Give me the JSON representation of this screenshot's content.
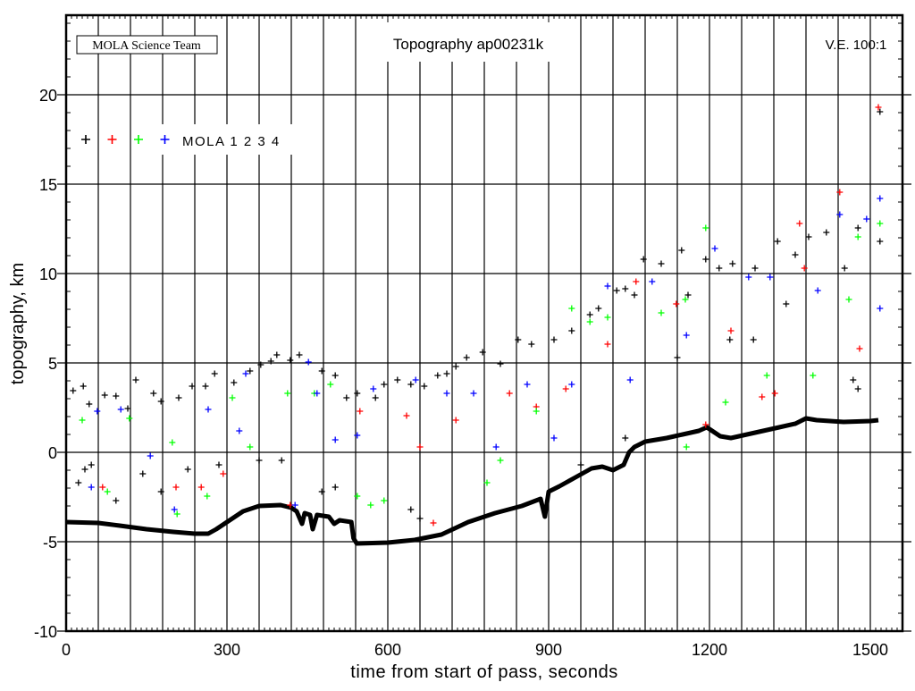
{
  "chart_data": {
    "type": "scatter",
    "title": "Topography ap00231k",
    "credit": "MOLA Science Team",
    "vertical_exaggeration": "V.E. 100:1",
    "xlabel": "time from start of pass, seconds",
    "ylabel": "topography, km",
    "xlim": [
      0,
      1560
    ],
    "ylim": [
      -10,
      24.45
    ],
    "xticks": [
      0,
      300,
      600,
      900,
      1200,
      1500
    ],
    "xtick_labels": [
      "0",
      "300",
      "600",
      "900",
      "1200",
      "1500"
    ],
    "yticks": [
      -10,
      -5,
      0,
      5,
      10,
      15,
      20
    ],
    "ytick_labels": [
      "-10",
      "-5",
      "0",
      "5",
      "10",
      "15",
      "20"
    ],
    "x_grid_step": 60,
    "y_grid_step": 5,
    "x_minor_step": 10,
    "y_minor_step": 1,
    "grid": true,
    "legend": {
      "placement": "top-left",
      "label": "MOLA 1 2 3 4",
      "colors": [
        "#000000",
        "#ff0000",
        "#00ff00",
        "#0000ff"
      ]
    },
    "ground_profile": {
      "color": "#000000",
      "points": [
        [
          0,
          -3.9
        ],
        [
          60,
          -3.95
        ],
        [
          100,
          -4.1
        ],
        [
          150,
          -4.3
        ],
        [
          200,
          -4.45
        ],
        [
          240,
          -4.55
        ],
        [
          265,
          -4.55
        ],
        [
          280,
          -4.3
        ],
        [
          300,
          -3.9
        ],
        [
          330,
          -3.3
        ],
        [
          360,
          -3.0
        ],
        [
          400,
          -2.95
        ],
        [
          420,
          -3.1
        ],
        [
          430,
          -3.3
        ],
        [
          440,
          -4.0
        ],
        [
          445,
          -3.4
        ],
        [
          455,
          -3.5
        ],
        [
          460,
          -4.3
        ],
        [
          468,
          -3.5
        ],
        [
          490,
          -3.6
        ],
        [
          500,
          -4.0
        ],
        [
          510,
          -3.8
        ],
        [
          532,
          -3.9
        ],
        [
          536,
          -4.8
        ],
        [
          542,
          -5.1
        ],
        [
          600,
          -5.05
        ],
        [
          650,
          -4.9
        ],
        [
          700,
          -4.6
        ],
        [
          750,
          -3.9
        ],
        [
          800,
          -3.4
        ],
        [
          850,
          -3.0
        ],
        [
          885,
          -2.6
        ],
        [
          893,
          -3.6
        ],
        [
          900,
          -2.2
        ],
        [
          920,
          -1.9
        ],
        [
          950,
          -1.4
        ],
        [
          980,
          -0.9
        ],
        [
          1000,
          -0.8
        ],
        [
          1020,
          -1.0
        ],
        [
          1040,
          -0.7
        ],
        [
          1050,
          0.0
        ],
        [
          1060,
          0.3
        ],
        [
          1080,
          0.6
        ],
        [
          1120,
          0.8
        ],
        [
          1150,
          1.0
        ],
        [
          1180,
          1.2
        ],
        [
          1195,
          1.4
        ],
        [
          1220,
          0.9
        ],
        [
          1240,
          0.8
        ],
        [
          1270,
          1.0
        ],
        [
          1300,
          1.2
        ],
        [
          1330,
          1.4
        ],
        [
          1360,
          1.6
        ],
        [
          1380,
          1.9
        ],
        [
          1400,
          1.8
        ],
        [
          1450,
          1.7
        ],
        [
          1500,
          1.75
        ],
        [
          1515,
          1.8
        ]
      ]
    },
    "series": [
      {
        "channel": 1,
        "color": "#000000",
        "points": [
          [
            13,
            3.45
          ],
          [
            32,
            3.7
          ],
          [
            43,
            2.7
          ],
          [
            72,
            3.2
          ],
          [
            93,
            3.15
          ],
          [
            115,
            2.45
          ],
          [
            130,
            4.05
          ],
          [
            163,
            3.3
          ],
          [
            177,
            2.85
          ],
          [
            210,
            3.05
          ],
          [
            235,
            3.7
          ],
          [
            260,
            3.7
          ],
          [
            277,
            4.4
          ],
          [
            313,
            3.9
          ],
          [
            343,
            4.55
          ],
          [
            363,
            4.9
          ],
          [
            382,
            5.1
          ],
          [
            393,
            5.45
          ],
          [
            418,
            5.15
          ],
          [
            435,
            5.45
          ],
          [
            477,
            4.55
          ],
          [
            502,
            4.3
          ],
          [
            523,
            3.05
          ],
          [
            543,
            3.3
          ],
          [
            577,
            3.05
          ],
          [
            593,
            3.8
          ],
          [
            618,
            4.05
          ],
          [
            643,
            3.8
          ],
          [
            668,
            3.7
          ],
          [
            693,
            4.3
          ],
          [
            710,
            4.4
          ],
          [
            727,
            4.8
          ],
          [
            747,
            5.3
          ],
          [
            777,
            5.6
          ],
          [
            810,
            4.95
          ],
          [
            843,
            6.3
          ],
          [
            868,
            6.05
          ],
          [
            910,
            6.3
          ],
          [
            943,
            6.8
          ],
          [
            977,
            7.7
          ],
          [
            993,
            8.05
          ],
          [
            1027,
            9.05
          ],
          [
            1043,
            9.15
          ],
          [
            1060,
            8.8
          ],
          [
            1077,
            10.8
          ],
          [
            1110,
            10.55
          ],
          [
            1148,
            11.3
          ],
          [
            1160,
            8.8
          ],
          [
            1193,
            10.8
          ],
          [
            1218,
            10.3
          ],
          [
            1243,
            10.55
          ],
          [
            1285,
            10.3
          ],
          [
            1327,
            11.8
          ],
          [
            1360,
            11.05
          ],
          [
            1385,
            12.05
          ],
          [
            1418,
            12.3
          ],
          [
            1452,
            10.3
          ],
          [
            1477,
            12.55
          ],
          [
            1518,
            11.8
          ],
          [
            1518,
            19.05
          ],
          [
            23,
            -1.7
          ],
          [
            35,
            -0.95
          ],
          [
            47,
            -0.7
          ],
          [
            93,
            -2.7
          ],
          [
            143,
            -1.2
          ],
          [
            177,
            -2.2
          ],
          [
            227,
            -0.95
          ],
          [
            285,
            -0.7
          ],
          [
            360,
            -0.45
          ],
          [
            402,
            -0.45
          ],
          [
            477,
            -2.2
          ],
          [
            502,
            -1.95
          ],
          [
            643,
            -3.2
          ],
          [
            660,
            -3.7
          ],
          [
            960,
            -0.7
          ],
          [
            1043,
            0.8
          ],
          [
            1140,
            5.3
          ],
          [
            1238,
            6.3
          ],
          [
            1282,
            6.3
          ],
          [
            1343,
            8.3
          ],
          [
            1468,
            4.05
          ],
          [
            1477,
            3.55
          ]
        ]
      },
      {
        "channel": 2,
        "color": "#ff0000",
        "points": [
          [
            68,
            -1.95
          ],
          [
            205,
            -1.95
          ],
          [
            252,
            -1.95
          ],
          [
            293,
            -1.2
          ],
          [
            418,
            -2.95
          ],
          [
            548,
            2.3
          ],
          [
            635,
            2.05
          ],
          [
            660,
            0.3
          ],
          [
            685,
            -3.95
          ],
          [
            727,
            1.8
          ],
          [
            827,
            3.3
          ],
          [
            877,
            2.55
          ],
          [
            932,
            3.55
          ],
          [
            1010,
            6.05
          ],
          [
            1063,
            9.55
          ],
          [
            1138,
            8.3
          ],
          [
            1193,
            1.55
          ],
          [
            1240,
            6.8
          ],
          [
            1298,
            3.1
          ],
          [
            1322,
            3.3
          ],
          [
            1368,
            12.8
          ],
          [
            1377,
            10.3
          ],
          [
            1443,
            14.55
          ],
          [
            1480,
            5.8
          ],
          [
            1515,
            19.3
          ]
        ]
      },
      {
        "channel": 3,
        "color": "#00ff00",
        "points": [
          [
            30,
            1.8
          ],
          [
            77,
            -2.2
          ],
          [
            118,
            1.9
          ],
          [
            198,
            0.55
          ],
          [
            207,
            -3.45
          ],
          [
            263,
            -2.45
          ],
          [
            310,
            3.05
          ],
          [
            343,
            0.3
          ],
          [
            413,
            3.3
          ],
          [
            463,
            3.3
          ],
          [
            493,
            3.8
          ],
          [
            543,
            -2.45
          ],
          [
            568,
            -2.95
          ],
          [
            593,
            -2.7
          ],
          [
            785,
            -1.7
          ],
          [
            810,
            -0.45
          ],
          [
            877,
            2.3
          ],
          [
            943,
            8.05
          ],
          [
            977,
            7.3
          ],
          [
            1010,
            7.55
          ],
          [
            1110,
            7.8
          ],
          [
            1155,
            8.55
          ],
          [
            1193,
            12.55
          ],
          [
            1157,
            0.3
          ],
          [
            1230,
            2.8
          ],
          [
            1307,
            4.3
          ],
          [
            1393,
            4.3
          ],
          [
            1460,
            8.55
          ],
          [
            1477,
            12.05
          ],
          [
            1518,
            12.8
          ]
        ]
      },
      {
        "channel": 4,
        "color": "#0000ff",
        "points": [
          [
            47,
            -1.95
          ],
          [
            58,
            2.3
          ],
          [
            102,
            2.4
          ],
          [
            157,
            -0.2
          ],
          [
            202,
            -3.2
          ],
          [
            265,
            2.4
          ],
          [
            323,
            1.2
          ],
          [
            335,
            4.4
          ],
          [
            427,
            -2.95
          ],
          [
            452,
            5.05
          ],
          [
            468,
            3.3
          ],
          [
            502,
            0.7
          ],
          [
            543,
            0.95
          ],
          [
            573,
            3.55
          ],
          [
            652,
            4.05
          ],
          [
            710,
            3.3
          ],
          [
            760,
            3.3
          ],
          [
            802,
            0.3
          ],
          [
            860,
            3.8
          ],
          [
            910,
            0.8
          ],
          [
            943,
            3.8
          ],
          [
            1010,
            9.3
          ],
          [
            1052,
            4.05
          ],
          [
            1093,
            9.55
          ],
          [
            1157,
            6.55
          ],
          [
            1210,
            11.4
          ],
          [
            1273,
            9.8
          ],
          [
            1313,
            9.8
          ],
          [
            1402,
            9.05
          ],
          [
            1443,
            13.3
          ],
          [
            1493,
            13.05
          ],
          [
            1518,
            14.2
          ],
          [
            1518,
            8.05
          ]
        ]
      }
    ]
  }
}
